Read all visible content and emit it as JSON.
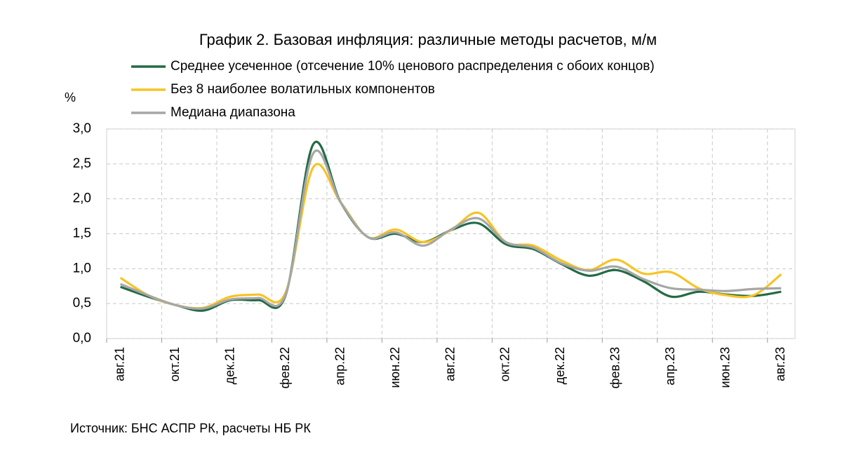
{
  "chart_data": {
    "type": "line",
    "title": "График 2. Базовая инфляция: различные методы расчетов, м/м",
    "y_label": "%",
    "source": "Источник: БНС АСПР РК, расчеты НБ РК",
    "categories": [
      "авг.21",
      null,
      "окт.21",
      null,
      "дек.21",
      null,
      "фев.22",
      null,
      "апр.22",
      null,
      "июн.22",
      null,
      "авг.22",
      null,
      "окт.22",
      null,
      "дек.22",
      null,
      "фев.23",
      null,
      "апр.23",
      null,
      "июн.23",
      null,
      "авг.23"
    ],
    "series": [
      {
        "name": "Среднее усеченное (отсечение 10% ценового распределения с обоих концов)",
        "color": "#236b45",
        "values": [
          0.74,
          0.6,
          0.48,
          0.4,
          0.55,
          0.55,
          0.62,
          2.78,
          1.95,
          1.45,
          1.5,
          1.38,
          1.55,
          1.65,
          1.35,
          1.28,
          1.07,
          0.9,
          0.98,
          0.82,
          0.6,
          0.67,
          0.63,
          0.61,
          0.67
        ]
      },
      {
        "name": "Без 8 наиболее волатильных компонентов",
        "color": "#f7c325",
        "values": [
          0.87,
          0.62,
          0.48,
          0.44,
          0.6,
          0.63,
          0.66,
          2.45,
          1.95,
          1.45,
          1.56,
          1.38,
          1.55,
          1.8,
          1.38,
          1.33,
          1.12,
          0.98,
          1.13,
          0.93,
          0.95,
          0.72,
          0.62,
          0.62,
          0.92
        ]
      },
      {
        "name": "Медиана диапазона",
        "color": "#a6a6a6",
        "values": [
          0.78,
          0.62,
          0.48,
          0.43,
          0.56,
          0.58,
          0.63,
          2.65,
          1.95,
          1.45,
          1.52,
          1.33,
          1.56,
          1.72,
          1.38,
          1.3,
          1.08,
          0.97,
          1.03,
          0.85,
          0.72,
          0.7,
          0.68,
          0.71,
          0.72
        ]
      }
    ],
    "ylim": [
      0,
      3
    ],
    "yticks": [
      {
        "value": 0,
        "label": "0,0"
      },
      {
        "value": 0.5,
        "label": "0,5"
      },
      {
        "value": 1,
        "label": "1,0"
      },
      {
        "value": 1.5,
        "label": "1,5"
      },
      {
        "value": 2,
        "label": "2,0"
      },
      {
        "value": 2.5,
        "label": "2,5"
      },
      {
        "value": 3,
        "label": "3,0"
      }
    ],
    "grid": true
  }
}
